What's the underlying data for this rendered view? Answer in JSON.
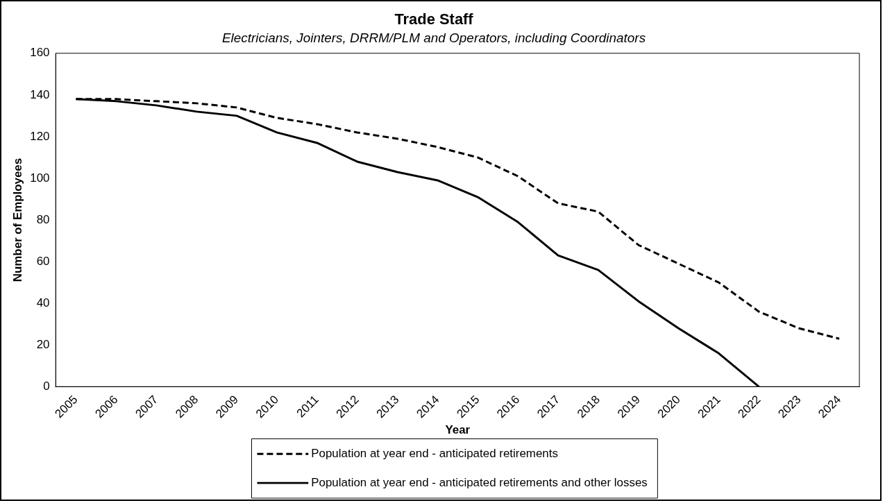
{
  "chart_data": {
    "type": "line",
    "title": "Trade Staff",
    "subtitle": "Electricians, Jointers, DRRM/PLM and Operators, including Coordinators",
    "xlabel": "Year",
    "ylabel": "Number of Employees",
    "categories": [
      "2005",
      "2006",
      "2007",
      "2008",
      "2009",
      "2010",
      "2011",
      "2012",
      "2013",
      "2014",
      "2015",
      "2016",
      "2017",
      "2018",
      "2019",
      "2020",
      "2021",
      "2022",
      "2023",
      "2024"
    ],
    "series": [
      {
        "name": "Population at year end - anticipated retirements",
        "color": "#000000",
        "line_style": "dashed",
        "values": [
          138,
          138,
          137,
          136,
          134,
          129,
          126,
          122,
          119,
          115,
          110,
          101,
          88,
          84,
          68,
          59,
          50,
          36,
          28,
          23
        ]
      },
      {
        "name": "Population at year end - anticipated retirements and other losses",
        "color": "#000000",
        "line_style": "solid",
        "values": [
          138,
          137,
          135,
          132,
          130,
          122,
          117,
          108,
          103,
          99,
          91,
          79,
          63,
          56,
          41,
          28,
          16,
          0,
          null,
          null
        ]
      }
    ],
    "ylim": [
      0,
      160
    ],
    "yticks": [
      0,
      20,
      40,
      60,
      80,
      100,
      120,
      140,
      160
    ],
    "grid": false,
    "legend": "bottom",
    "marker": "none"
  }
}
